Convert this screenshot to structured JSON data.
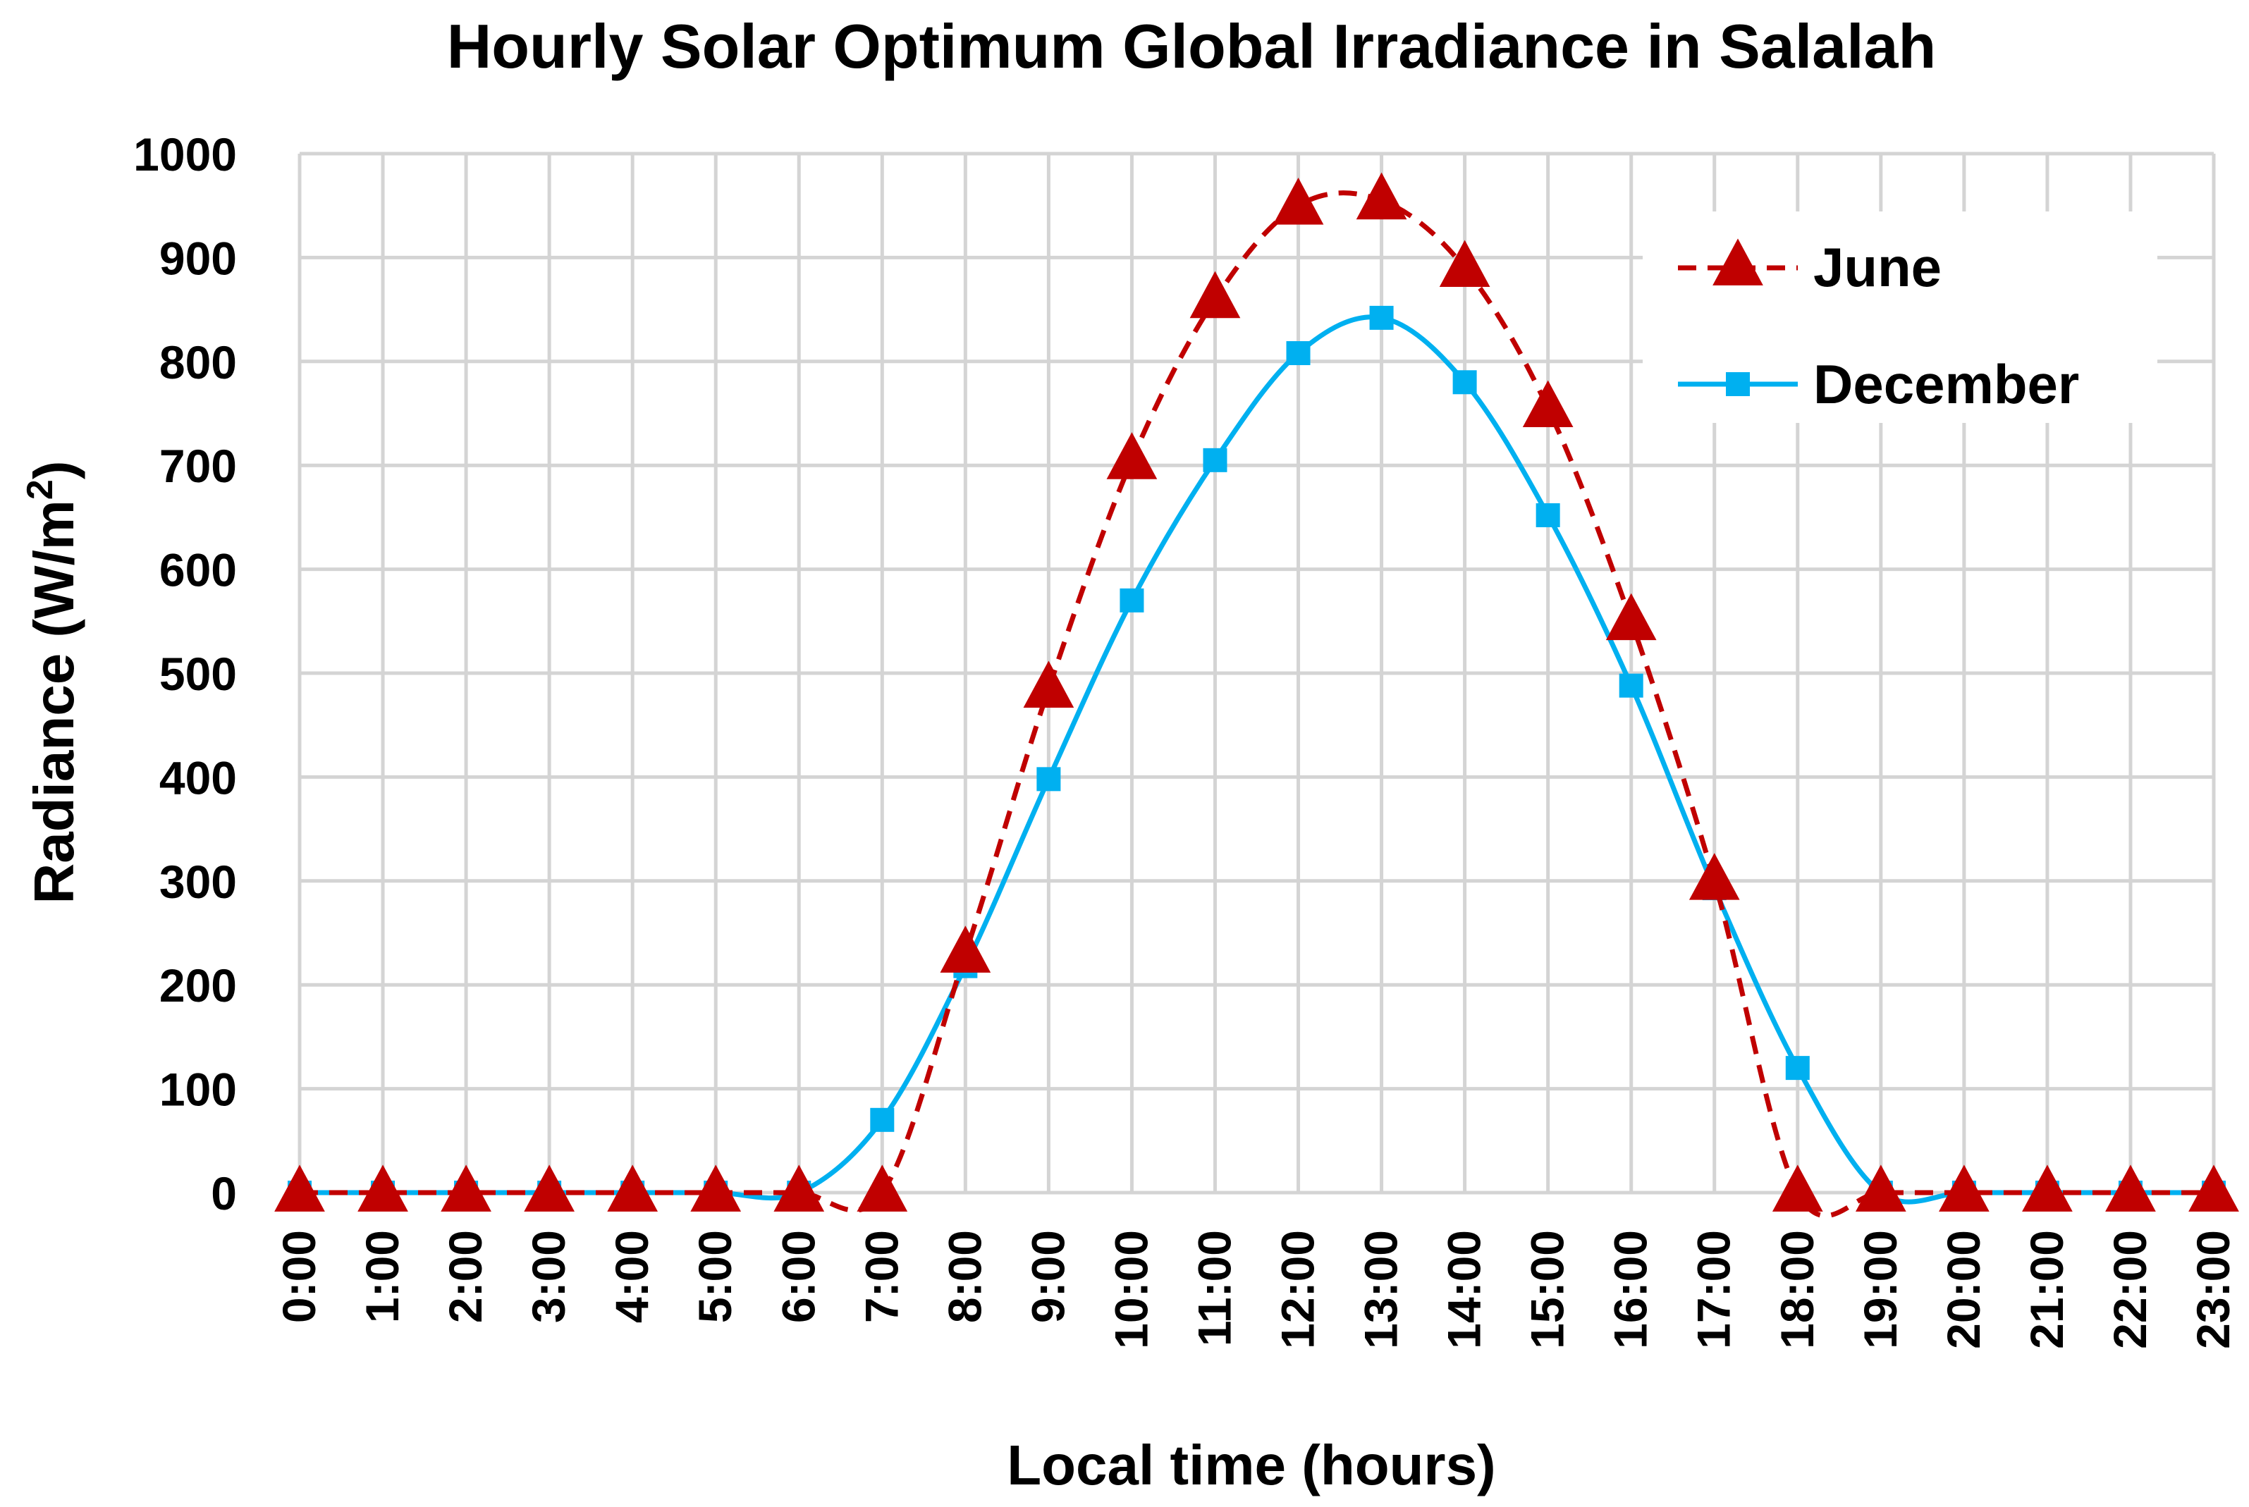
{
  "chart_data": {
    "type": "line",
    "title": "Hourly Solar Optimum Global Irradiance in Salalah",
    "xlabel": "Local time (hours)",
    "ylabel": "Radiance (W/m²)",
    "ylabel_main": "Radiance (W/m",
    "ylabel_sup": "2",
    "ylabel_close": ")",
    "ylim": [
      0,
      1000
    ],
    "yticks": [
      "0",
      "100",
      "200",
      "300",
      "400",
      "500",
      "600",
      "700",
      "800",
      "900",
      "1000"
    ],
    "categories": [
      "0:00",
      "1:00",
      "2:00",
      "3:00",
      "4:00",
      "5:00",
      "6:00",
      "7:00",
      "8:00",
      "9:00",
      "10:00",
      "11:00",
      "12:00",
      "13:00",
      "14:00",
      "15:00",
      "16:00",
      "17:00",
      "18:00",
      "19:00",
      "20:00",
      "21:00",
      "22:00",
      "23:00"
    ],
    "grid": true,
    "legend_position": "top-right",
    "series": [
      {
        "name": "June",
        "color": "#c00000",
        "line_style": "dashed",
        "marker": "triangle",
        "values": [
          0,
          0,
          0,
          0,
          0,
          0,
          0,
          0,
          230,
          485,
          705,
          860,
          950,
          955,
          890,
          755,
          550,
          300,
          0,
          0,
          0,
          0,
          0,
          0
        ]
      },
      {
        "name": "December",
        "color": "#00b0f0",
        "line_style": "solid",
        "marker": "square",
        "values": [
          0,
          0,
          0,
          0,
          0,
          0,
          0,
          70,
          218,
          398,
          570,
          705,
          808,
          842,
          780,
          652,
          488,
          293,
          120,
          0,
          0,
          0,
          0,
          0
        ]
      }
    ]
  }
}
